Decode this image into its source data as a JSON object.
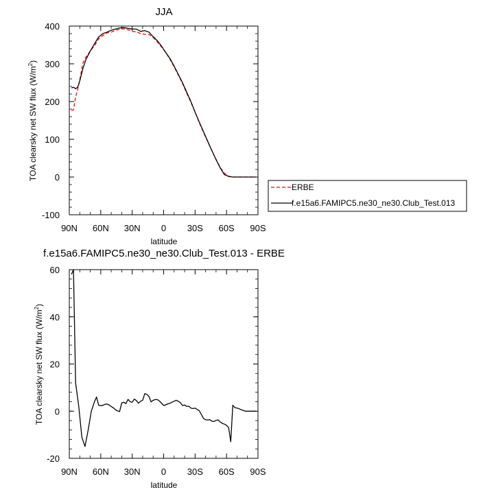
{
  "chart_data": [
    {
      "type": "line",
      "title": "JJA",
      "xlabel": "latitude",
      "ylabel_main": "TOA clearsky net SW flux (W/m",
      "ylabel_sup": "2",
      "ylabel_close": ")",
      "xlim": [
        90,
        -90
      ],
      "ylim": [
        -100,
        400
      ],
      "xtick_values": [
        90,
        60,
        30,
        0,
        -30,
        -60,
        -90
      ],
      "xtick_labels": [
        "90N",
        "60N",
        "30N",
        "0",
        "30S",
        "60S",
        "90S"
      ],
      "ytick_values": [
        -100,
        0,
        100,
        200,
        300,
        400
      ],
      "ytick_labels": [
        "-100",
        "0",
        "100",
        "200",
        "300",
        "400"
      ],
      "legend": {
        "placement": "right",
        "entries": [
          {
            "label": "ERBE",
            "color": "#ff0000",
            "dash": "dashed"
          },
          {
            "label": "f.e15a6.FAMIPC5.ne30_ne30.Club_Test.013",
            "color": "#000000",
            "dash": "solid"
          }
        ]
      },
      "series": [
        {
          "name": "ERBE",
          "color": "#ff0000",
          "dash": "dashed",
          "x": [
            88,
            86,
            84,
            82,
            80,
            77,
            74,
            70,
            66,
            62,
            58,
            54,
            50,
            46,
            42,
            38,
            34,
            30,
            26,
            22,
            18,
            14,
            10,
            6,
            2,
            -2,
            -6,
            -10,
            -14,
            -18,
            -22,
            -26,
            -30,
            -34,
            -38,
            -42,
            -46,
            -50,
            -54,
            -58,
            -62,
            -66,
            -70,
            -74,
            -78,
            -82,
            -86,
            -88
          ],
          "y": [
            176,
            178,
            212,
            232,
            258,
            302,
            318,
            334,
            348,
            366,
            375,
            382,
            384,
            389,
            391,
            393,
            390,
            386,
            385,
            380,
            378,
            378,
            370,
            358,
            345,
            330,
            312,
            292,
            270,
            248,
            222,
            198,
            172,
            144,
            118,
            94,
            70,
            47,
            25,
            10,
            1,
            0,
            0,
            0,
            0,
            0,
            0,
            0
          ]
        },
        {
          "name": "f.e15a6.FAMIPC5.ne30_ne30.Club_Test.013",
          "color": "#000000",
          "dash": "solid",
          "x": [
            88,
            86,
            84,
            82,
            80,
            77,
            74,
            70,
            66,
            62,
            58,
            54,
            50,
            46,
            42,
            38,
            34,
            30,
            26,
            22,
            18,
            14,
            10,
            6,
            2,
            -2,
            -6,
            -10,
            -14,
            -18,
            -22,
            -26,
            -30,
            -34,
            -38,
            -42,
            -46,
            -50,
            -54,
            -58,
            -62,
            -66,
            -70,
            -74,
            -78,
            -82,
            -86,
            -88
          ],
          "y": [
            236,
            238,
            234,
            238,
            255,
            288,
            312,
            334,
            353,
            371,
            380,
            384,
            389,
            392,
            395,
            396,
            394,
            392,
            392,
            386,
            388,
            384,
            372,
            361,
            347,
            330,
            314,
            294,
            272,
            250,
            225,
            200,
            172,
            146,
            120,
            95,
            70,
            46,
            24,
            6,
            2,
            0,
            0,
            0,
            0,
            0,
            0,
            0
          ]
        }
      ]
    },
    {
      "type": "line",
      "title": "f.e15a6.FAMIPC5.ne30_ne30.Club_Test.013 - ERBE",
      "xlabel": "latitude",
      "ylabel_main": "TOA clearsky net SW flux (W/m",
      "ylabel_sup": "2",
      "ylabel_close": ")",
      "xlim": [
        90,
        -90
      ],
      "ylim": [
        -20,
        60
      ],
      "xtick_values": [
        90,
        60,
        30,
        0,
        -30,
        -60,
        -90
      ],
      "xtick_labels": [
        "90N",
        "60N",
        "30N",
        "0",
        "30S",
        "60S",
        "90S"
      ],
      "ytick_values": [
        -20,
        0,
        20,
        40,
        60
      ],
      "ytick_labels": [
        "-20",
        "0",
        "20",
        "40",
        "60"
      ],
      "series": [
        {
          "name": "",
          "color": "#000000",
          "dash": "solid",
          "x": [
            88,
            86,
            84,
            81,
            78,
            75,
            72,
            69,
            66,
            64,
            62,
            60,
            58,
            56,
            54,
            52,
            50,
            48,
            46,
            44,
            42,
            40,
            38,
            36,
            34,
            32,
            30,
            28,
            26,
            24,
            22,
            20,
            18,
            16,
            14,
            12,
            10,
            8,
            6,
            4,
            2,
            0,
            -2,
            -4,
            -6,
            -8,
            -10,
            -12,
            -14,
            -16,
            -18,
            -20,
            -22,
            -24,
            -26,
            -28,
            -30,
            -32,
            -34,
            -36,
            -38,
            -40,
            -42,
            -44,
            -46,
            -48,
            -50,
            -52,
            -54,
            -56,
            -58,
            -60,
            -62,
            -63,
            -64,
            -66,
            -68,
            -70,
            -72,
            -74,
            -76,
            -78,
            -80,
            -82,
            -84,
            -86,
            -88
          ],
          "y": [
            58,
            60,
            12,
            2,
            -11,
            -15,
            -8,
            0,
            4,
            6,
            2.5,
            2.3,
            2.5,
            2.9,
            3.0,
            2.6,
            2.0,
            1.4,
            0.6,
            0.1,
            -0.2,
            3.5,
            3.8,
            3.2,
            5.0,
            4.0,
            3.8,
            5.1,
            4.5,
            3.4,
            4.2,
            4.6,
            7.4,
            7.1,
            6.2,
            3.9,
            4.6,
            4.9,
            4.9,
            4.3,
            3.4,
            2.4,
            2.7,
            3.1,
            3.3,
            3.8,
            4.2,
            4.6,
            4.2,
            3.6,
            2.4,
            2.6,
            2.0,
            2.1,
            1.3,
            1.1,
            1.3,
            0.7,
            0.2,
            -1.4,
            -3.1,
            -3.6,
            -3.8,
            -3.6,
            -4.2,
            -4.4,
            -3.9,
            -3.7,
            -4.6,
            -5.2,
            -5.5,
            -6.0,
            -7.0,
            -10.0,
            -13.0,
            2.5,
            1.5,
            1.3,
            1.0,
            0.6,
            0.3,
            0.0,
            0.0,
            0.0,
            0.0,
            0.0,
            0.0
          ]
        }
      ]
    }
  ]
}
